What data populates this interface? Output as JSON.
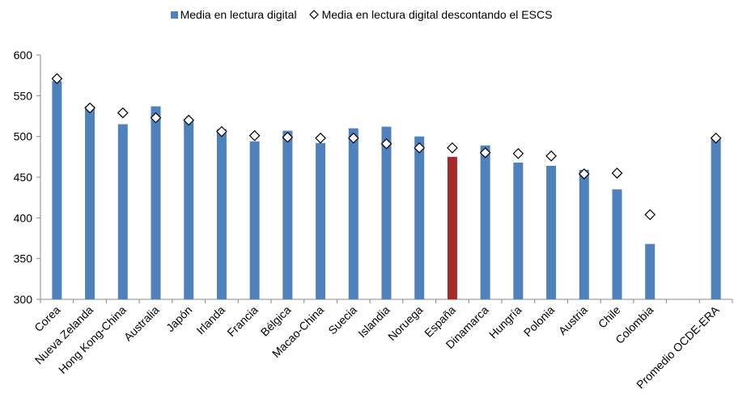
{
  "colors": {
    "bar": "#4F81BD",
    "highlight_bar": "#A52A2A",
    "marker_fill": "#ffffff",
    "marker_stroke": "#000000",
    "axis": "#888888"
  },
  "legend": {
    "series1_label": "Media en lectura digital",
    "series2_label": "Media en lectura digital descontando el ESCS"
  },
  "chart_data": {
    "type": "bar",
    "title": "",
    "xlabel": "",
    "ylabel": "",
    "ylim": [
      300,
      600
    ],
    "yticks": [
      300,
      350,
      400,
      450,
      500,
      550,
      600
    ],
    "grid": false,
    "legend_position": "top",
    "categories": [
      "Corea",
      "Nueva Zelanda",
      "Hong Kong-China",
      "Australia",
      "Japón",
      "Irlanda",
      "Francia",
      "Bélgica",
      "Macao-China",
      "Suecia",
      "Islandia",
      "Noruega",
      "España",
      "Dinamarca",
      "Hungría",
      "Polonia",
      "Austria",
      "Chile",
      "Colombia",
      "",
      "Promedio OCDE-ERA"
    ],
    "highlight_category": "España",
    "series": [
      {
        "name": "Media en lectura digital",
        "kind": "bar",
        "values": [
          568,
          537,
          515,
          537,
          519,
          509,
          494,
          507,
          492,
          510,
          512,
          500,
          475,
          489,
          468,
          464,
          459,
          435,
          368,
          null,
          499
        ]
      },
      {
        "name": "Media en lectura digital descontando el ESCS",
        "kind": "marker",
        "values": [
          571,
          535,
          529,
          523,
          520,
          506,
          501,
          499,
          498,
          498,
          491,
          486,
          486,
          480,
          479,
          476,
          454,
          455,
          404,
          null,
          498
        ]
      }
    ]
  }
}
